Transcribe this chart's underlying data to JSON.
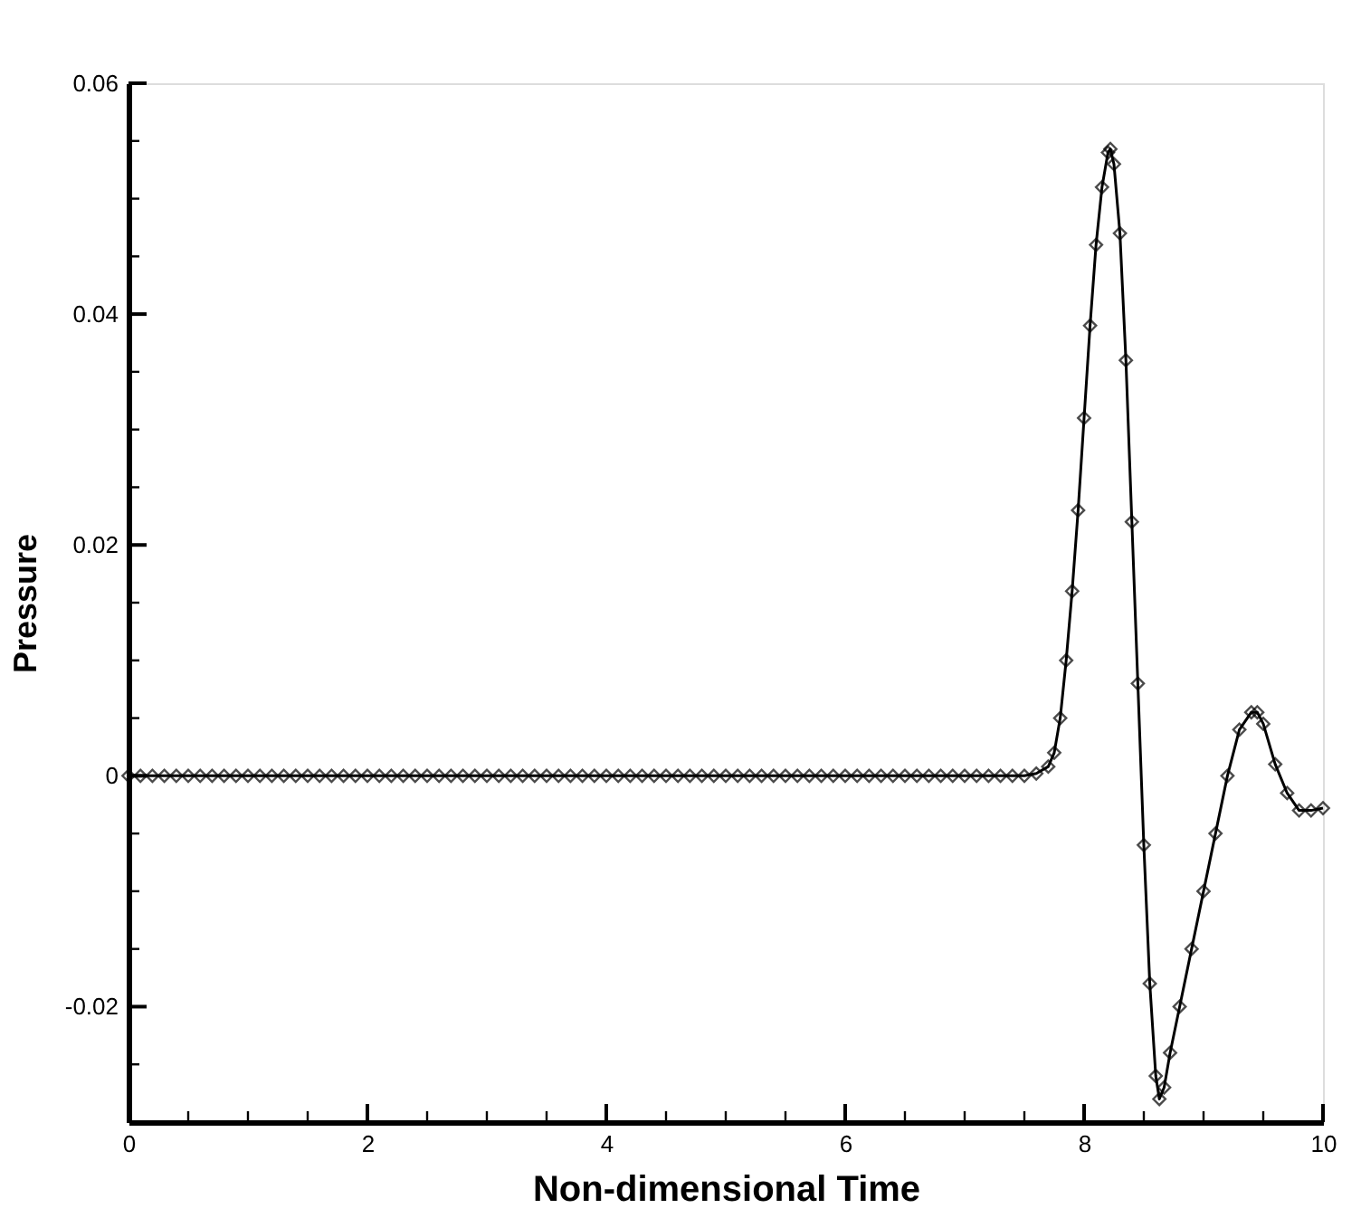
{
  "chart_data": {
    "type": "line",
    "xlabel": "Non-dimensional Time",
    "ylabel": "Pressure",
    "xlim": [
      0,
      10
    ],
    "ylim": [
      -0.03,
      0.06
    ],
    "xticks": [
      0,
      {
        "value": 0.5,
        "label": null
      },
      {
        "value": 1,
        "label": null
      },
      {
        "value": 1.5,
        "label": null
      },
      2,
      {
        "value": 2.5,
        "label": null
      },
      {
        "value": 3,
        "label": null
      },
      {
        "value": 3.5,
        "label": null
      },
      4,
      {
        "value": 4.5,
        "label": null
      },
      {
        "value": 5,
        "label": null
      },
      {
        "value": 5.5,
        "label": null
      },
      6,
      {
        "value": 6.5,
        "label": null
      },
      {
        "value": 7,
        "label": null
      },
      {
        "value": 7.5,
        "label": null
      },
      8,
      {
        "value": 8.5,
        "label": null
      },
      {
        "value": 9,
        "label": null
      },
      {
        "value": 9.5,
        "label": null
      },
      10
    ],
    "yticks": [
      {
        "value": -0.025,
        "label": null
      },
      -0.02,
      {
        "value": -0.015,
        "label": null
      },
      {
        "value": -0.01,
        "label": null
      },
      {
        "value": -0.005,
        "label": null
      },
      0,
      {
        "value": 0.005,
        "label": null
      },
      {
        "value": 0.01,
        "label": null
      },
      {
        "value": 0.015,
        "label": null
      },
      0.02,
      {
        "value": 0.025,
        "label": null
      },
      {
        "value": 0.03,
        "label": null
      },
      {
        "value": 0.035,
        "label": null
      },
      0.04,
      {
        "value": 0.045,
        "label": null
      },
      {
        "value": 0.05,
        "label": null
      },
      {
        "value": 0.055,
        "label": null
      },
      0.06
    ],
    "grid": false,
    "marker": "diamond",
    "line_style": "solid",
    "series": [
      {
        "color": "#000000",
        "x": [
          0,
          0.1,
          0.2,
          0.3,
          0.4,
          0.5,
          0.6,
          0.7,
          0.8,
          0.9,
          1.0,
          1.1,
          1.2,
          1.3,
          1.4,
          1.5,
          1.6,
          1.7,
          1.8,
          1.9,
          2.0,
          2.1,
          2.2,
          2.3,
          2.4,
          2.5,
          2.6,
          2.7,
          2.8,
          2.9,
          3.0,
          3.1,
          3.2,
          3.3,
          3.4,
          3.5,
          3.6,
          3.7,
          3.8,
          3.9,
          4.0,
          4.1,
          4.2,
          4.3,
          4.4,
          4.5,
          4.6,
          4.7,
          4.8,
          4.9,
          5.0,
          5.1,
          5.2,
          5.3,
          5.4,
          5.5,
          5.6,
          5.7,
          5.8,
          5.9,
          6.0,
          6.1,
          6.2,
          6.3,
          6.4,
          6.5,
          6.6,
          6.7,
          6.8,
          6.9,
          7.0,
          7.1,
          7.2,
          7.3,
          7.4,
          7.5,
          7.6,
          7.7,
          7.75,
          7.8,
          7.85,
          7.9,
          7.95,
          8.0,
          8.05,
          8.1,
          8.15,
          8.2,
          8.22,
          8.25,
          8.3,
          8.35,
          8.4,
          8.45,
          8.5,
          8.55,
          8.6,
          8.63,
          8.67,
          8.72,
          8.8,
          8.9,
          9.0,
          9.1,
          9.2,
          9.3,
          9.4,
          9.45,
          9.5,
          9.6,
          9.7,
          9.8,
          9.9,
          10.0
        ],
        "values": [
          0,
          0,
          0,
          0,
          0,
          0,
          0,
          0,
          0,
          0,
          0,
          0,
          0,
          0,
          0,
          0,
          0,
          0,
          0,
          0,
          0,
          0,
          0,
          0,
          0,
          0,
          0,
          0,
          0,
          0,
          0,
          0,
          0,
          0,
          0,
          0,
          0,
          0,
          0,
          0,
          0,
          0,
          0,
          0,
          0,
          0,
          0,
          0,
          0,
          0,
          0,
          0,
          0,
          0,
          0,
          0,
          0,
          0,
          0,
          0,
          0,
          0,
          0,
          0,
          0,
          0,
          0,
          0,
          0,
          0,
          0,
          0,
          0,
          0,
          0,
          0,
          0.0002,
          0.0008,
          0.002,
          0.005,
          0.01,
          0.016,
          0.023,
          0.031,
          0.039,
          0.046,
          0.051,
          0.054,
          0.0543,
          0.053,
          0.047,
          0.036,
          0.022,
          0.008,
          -0.006,
          -0.018,
          -0.026,
          -0.028,
          -0.027,
          -0.024,
          -0.02,
          -0.015,
          -0.01,
          -0.005,
          0.0,
          0.004,
          0.0055,
          0.0055,
          0.0045,
          0.001,
          -0.0015,
          -0.003,
          -0.003,
          -0.0028
        ]
      }
    ]
  }
}
